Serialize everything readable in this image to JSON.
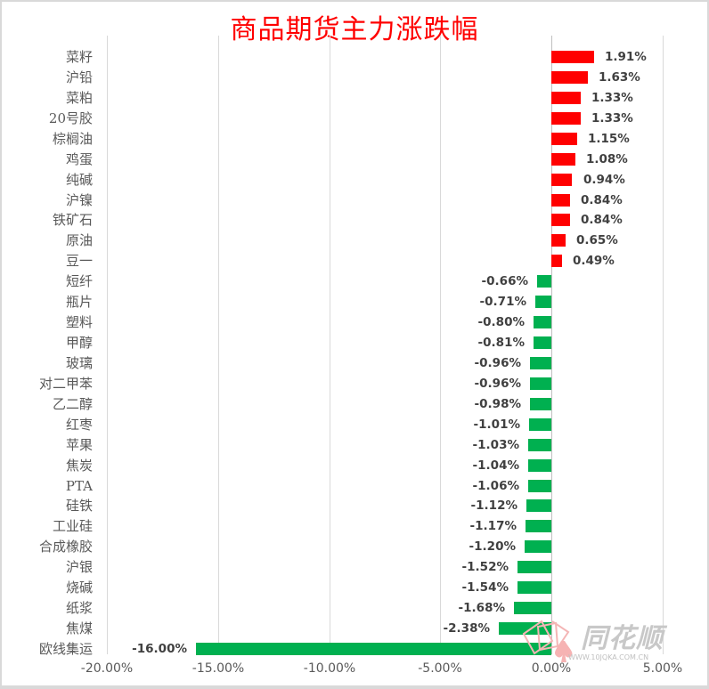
{
  "chart_data": {
    "type": "bar",
    "orientation": "horizontal",
    "title": "商品期货主力涨跌幅",
    "xlabel": "",
    "ylabel": "",
    "xlim": [
      -20,
      5
    ],
    "x_ticks": [
      "-20.00%",
      "-15.00%",
      "-10.00%",
      "-5.00%",
      "0.00%",
      "5.00%"
    ],
    "x_tick_values": [
      -20,
      -15,
      -10,
      -5,
      0,
      5
    ],
    "grid": "vertical",
    "legend": null,
    "positive_color": "#ff0000",
    "negative_color": "#00b050",
    "categories": [
      "菜籽",
      "沪铅",
      "菜粕",
      "20号胶",
      "棕榈油",
      "鸡蛋",
      "纯碱",
      "沪镍",
      "铁矿石",
      "原油",
      "豆一",
      "短纤",
      "瓶片",
      "塑料",
      "甲醇",
      "玻璃",
      "对二甲苯",
      "乙二醇",
      "红枣",
      "苹果",
      "焦炭",
      "PTA",
      "硅铁",
      "工业硅",
      "合成橡胶",
      "沪银",
      "烧碱",
      "纸浆",
      "焦煤",
      "欧线集运"
    ],
    "values": [
      1.91,
      1.63,
      1.33,
      1.33,
      1.15,
      1.08,
      0.94,
      0.84,
      0.84,
      0.65,
      0.49,
      -0.66,
      -0.71,
      -0.8,
      -0.81,
      -0.96,
      -0.96,
      -0.98,
      -1.01,
      -1.03,
      -1.04,
      -1.06,
      -1.12,
      -1.17,
      -1.2,
      -1.52,
      -1.54,
      -1.68,
      -2.38,
      -16.0
    ],
    "value_labels": [
      "1.91%",
      "1.63%",
      "1.33%",
      "1.33%",
      "1.15%",
      "1.08%",
      "0.94%",
      "0.84%",
      "0.84%",
      "0.65%",
      "0.49%",
      "-0.66%",
      "-0.71%",
      "-0.80%",
      "-0.81%",
      "-0.96%",
      "-0.96%",
      "-0.98%",
      "-1.01%",
      "-1.03%",
      "-1.04%",
      "-1.06%",
      "-1.12%",
      "-1.17%",
      "-1.20%",
      "-1.52%",
      "-1.54%",
      "-1.68%",
      "-2.38%",
      "-16.00%"
    ],
    "unit": "%"
  },
  "watermark": {
    "brand": "同花顺",
    "url": "WWW.10JQKA.COM.CN"
  }
}
